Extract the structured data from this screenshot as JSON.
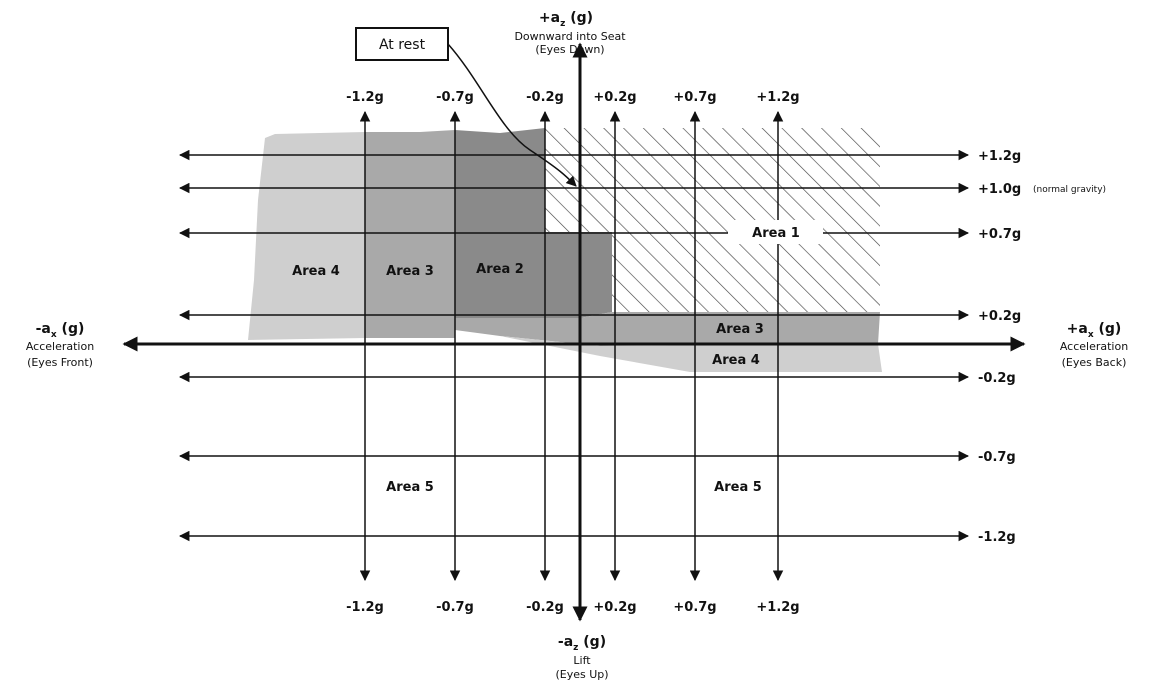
{
  "colors": {
    "area4": "#cfcfcf",
    "area3": "#a9a9a9",
    "area2": "#8a8a8a",
    "line": "#111111",
    "hatch": "#444444"
  },
  "callout": {
    "label": "At rest"
  },
  "axes": {
    "top": {
      "title": "+a",
      "sub": "z",
      "unit": " (g)",
      "desc1": "Downward into Seat",
      "desc2": "(Eyes Down)"
    },
    "bottom": {
      "title": "-a",
      "sub": "z",
      "unit": " (g)",
      "desc1": "Lift",
      "desc2": "(Eyes Up)"
    },
    "left": {
      "title": "-a",
      "sub": "x",
      "unit": " (g)",
      "desc1": "Acceleration",
      "desc2": "(Eyes Front)"
    },
    "right": {
      "title": "+a",
      "sub": "x",
      "unit": " (g)",
      "desc1": "Acceleration",
      "desc2": "(Eyes Back)"
    }
  },
  "x_ticks": [
    "-1.2g",
    "-0.7g",
    "-0.2g",
    "+0.2g",
    "+0.7g",
    "+1.2g"
  ],
  "z_ticks": [
    {
      "label": "+1.2g",
      "note": ""
    },
    {
      "label": "+1.0g",
      "note": "(normal gravity)"
    },
    {
      "label": "+0.7g",
      "note": ""
    },
    {
      "label": "+0.2g",
      "note": ""
    },
    {
      "label": "-0.2g",
      "note": ""
    },
    {
      "label": "-0.7g",
      "note": ""
    },
    {
      "label": "-1.2g",
      "note": ""
    }
  ],
  "areas": {
    "area1": "Area 1",
    "area2": "Area 2",
    "area3_upper": "Area 3",
    "area4_upper": "Area 4",
    "area3_lower": "Area 3",
    "area4_lower": "Area 4",
    "area5_left": "Area 5",
    "area5_right": "Area 5"
  }
}
